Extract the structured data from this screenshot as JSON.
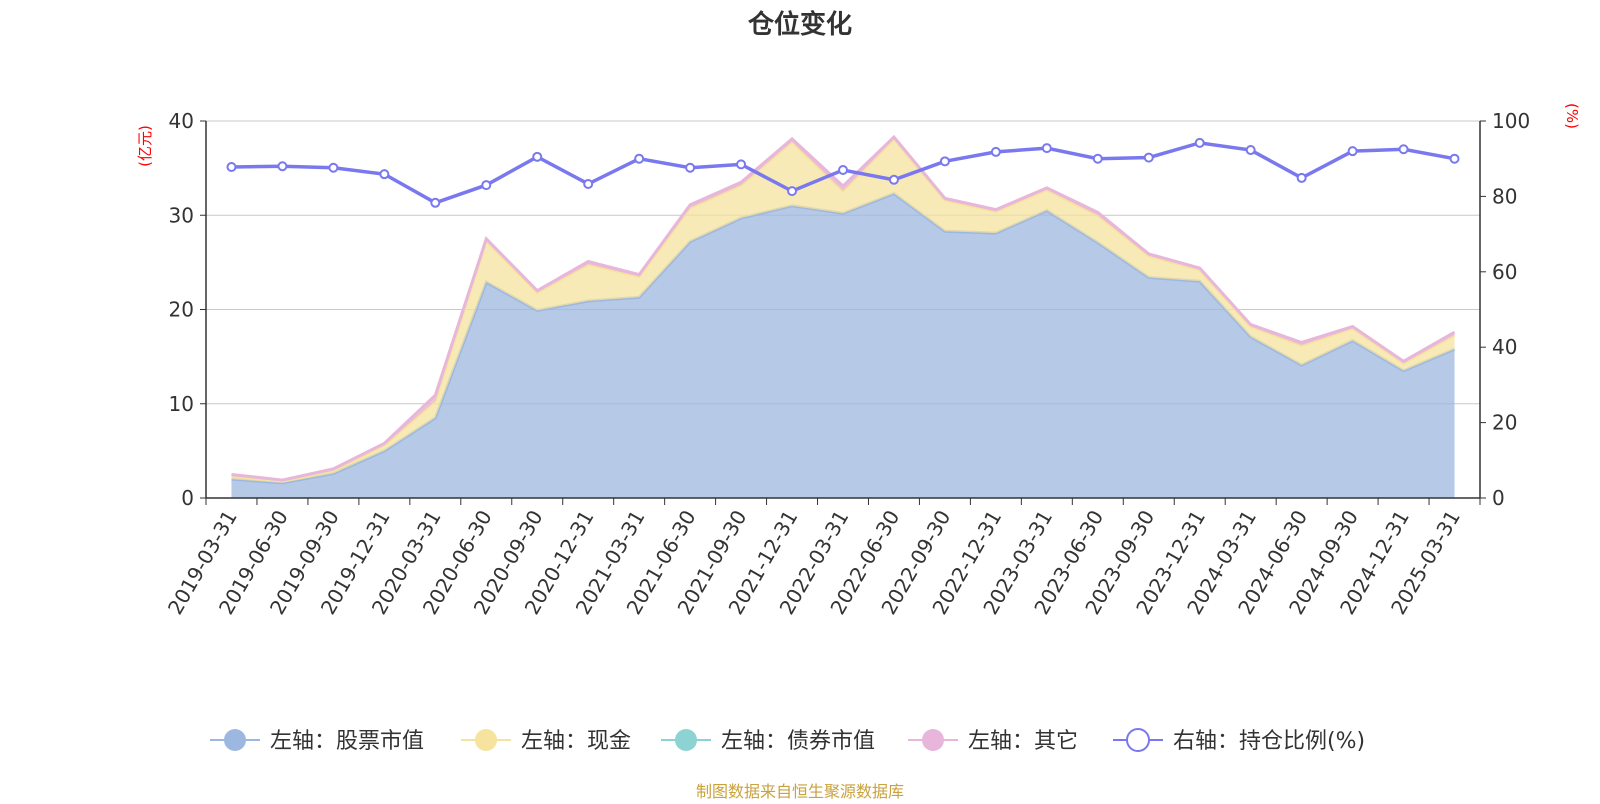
{
  "chart_data": {
    "type": "area",
    "title": "仓位变化",
    "left_axis_unit": "(亿元)",
    "right_axis_unit": "(%)",
    "ylim_left": [
      0,
      40
    ],
    "ylim_right": [
      0,
      100
    ],
    "yticks_left": [
      "0",
      "10",
      "20",
      "30",
      "40"
    ],
    "yticks_right": [
      "0",
      "20",
      "40",
      "60",
      "80",
      "100"
    ],
    "grid": true,
    "legend_position": "bottom",
    "categories": [
      "2019-03-31",
      "2019-06-30",
      "2019-09-30",
      "2019-12-31",
      "2020-03-31",
      "2020-06-30",
      "2020-09-30",
      "2020-12-31",
      "2021-03-31",
      "2021-06-30",
      "2021-09-30",
      "2021-12-31",
      "2022-03-31",
      "2022-06-30",
      "2022-09-30",
      "2022-12-31",
      "2023-03-31",
      "2023-06-30",
      "2023-09-30",
      "2023-12-31",
      "2024-03-31",
      "2024-06-30",
      "2024-09-30",
      "2024-12-31",
      "2025-03-31"
    ],
    "series": [
      {
        "name": "左轴：股票市值",
        "axis": "left",
        "stack": true,
        "color": "#9db8e0",
        "values": [
          2.0,
          1.6,
          2.6,
          5.0,
          8.5,
          22.9,
          19.9,
          20.9,
          21.3,
          27.2,
          29.7,
          31.0,
          30.2,
          32.3,
          28.3,
          28.1,
          30.5,
          27.1,
          23.4,
          23.0,
          17.1,
          14.1,
          16.7,
          13.5,
          15.8
        ]
      },
      {
        "name": "左轴：现金",
        "axis": "left",
        "stack": true,
        "color": "#f5e39e",
        "values": [
          0.3,
          0.2,
          0.3,
          0.6,
          1.8,
          4.4,
          1.9,
          3.9,
          2.2,
          3.6,
          3.5,
          6.8,
          2.4,
          5.8,
          3.3,
          2.3,
          2.2,
          2.9,
          2.3,
          1.2,
          1.1,
          2.1,
          1.3,
          0.8,
          1.5
        ]
      },
      {
        "name": "左轴：债券市值",
        "axis": "left",
        "stack": true,
        "color": "#8dd3d3",
        "values": [
          0,
          0,
          0,
          0,
          0,
          0,
          0,
          0,
          0,
          0,
          0,
          0,
          0,
          0,
          0,
          0,
          0,
          0,
          0,
          0,
          0,
          0,
          0,
          0,
          0
        ]
      },
      {
        "name": "左轴：其它",
        "axis": "left",
        "stack": true,
        "color": "#e7b6da",
        "values": [
          0.2,
          0.1,
          0.2,
          0.2,
          0.6,
          0.2,
          0.2,
          0.3,
          0.2,
          0.3,
          0.3,
          0.3,
          0.5,
          0.2,
          0.2,
          0.2,
          0.2,
          0.3,
          0.2,
          0.2,
          0.2,
          0.3,
          0.2,
          0.2,
          0.3
        ]
      },
      {
        "name": "右轴：持仓比例(%)",
        "axis": "right",
        "type": "line",
        "color": "#7a78ef",
        "values": [
          87.8,
          88.0,
          87.6,
          85.9,
          78.3,
          83.0,
          90.5,
          83.3,
          90.0,
          87.6,
          88.5,
          81.4,
          87.0,
          84.4,
          89.3,
          91.8,
          92.8,
          90.0,
          90.3,
          94.2,
          92.3,
          84.9,
          92.0,
          92.5,
          90.0
        ]
      }
    ]
  },
  "footer": {
    "credit": "制图数据来自恒生聚源数据库"
  }
}
